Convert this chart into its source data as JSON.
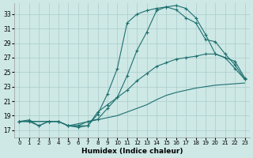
{
  "xlabel": "Humidex (Indice chaleur)",
  "xlim": [
    -0.5,
    23.5
  ],
  "ylim": [
    16.0,
    34.5
  ],
  "xticks": [
    0,
    1,
    2,
    3,
    4,
    5,
    6,
    7,
    8,
    9,
    10,
    11,
    12,
    13,
    14,
    15,
    16,
    17,
    18,
    19,
    20,
    21,
    22,
    23
  ],
  "yticks": [
    17,
    19,
    21,
    23,
    25,
    27,
    29,
    31,
    33
  ],
  "bg_color": "#cde8e5",
  "line_color": "#1e7070",
  "grid_color": "#aacccc",
  "lines": [
    {
      "x": [
        0,
        1,
        2,
        3,
        4,
        5,
        6,
        7,
        8,
        9,
        10,
        11,
        12,
        13,
        14,
        15,
        16,
        17,
        18,
        19,
        20,
        21,
        22,
        23
      ],
      "y": [
        18.2,
        18.4,
        17.6,
        18.2,
        18.2,
        17.6,
        17.6,
        18.2,
        18.5,
        20.0,
        21.5,
        24.5,
        28.0,
        30.5,
        33.5,
        34.0,
        34.2,
        33.8,
        32.5,
        30.2,
        27.5,
        27.0,
        25.5,
        24.0
      ],
      "has_markers": true
    },
    {
      "x": [
        0,
        1,
        2,
        3,
        4,
        5,
        6,
        7,
        8,
        9,
        10,
        11,
        12,
        13,
        14,
        15,
        16,
        17,
        18,
        19,
        20,
        21,
        22,
        23
      ],
      "y": [
        18.2,
        18.2,
        17.6,
        18.2,
        18.2,
        17.6,
        17.4,
        17.6,
        19.2,
        22.0,
        25.5,
        31.8,
        33.0,
        33.5,
        33.8,
        34.0,
        33.6,
        32.5,
        31.8,
        29.5,
        29.2,
        27.5,
        26.0,
        24.0
      ],
      "has_markers": true
    },
    {
      "x": [
        0,
        3,
        4,
        5,
        6,
        7,
        8,
        9,
        10,
        11,
        12,
        13,
        14,
        15,
        16,
        17,
        18,
        19,
        20,
        22,
        23
      ],
      "y": [
        18.2,
        18.2,
        18.2,
        17.6,
        17.6,
        17.6,
        19.5,
        20.5,
        21.5,
        22.5,
        23.8,
        24.8,
        25.8,
        26.3,
        26.8,
        27.0,
        27.2,
        27.5,
        27.5,
        26.5,
        24.2
      ],
      "has_markers": true
    },
    {
      "x": [
        0,
        3,
        4,
        5,
        10,
        11,
        12,
        13,
        14,
        15,
        16,
        17,
        18,
        19,
        20,
        21,
        22,
        23
      ],
      "y": [
        18.2,
        18.2,
        18.2,
        17.6,
        19.0,
        19.5,
        20.0,
        20.5,
        21.2,
        21.8,
        22.2,
        22.5,
        22.8,
        23.0,
        23.2,
        23.3,
        23.4,
        23.5
      ],
      "has_markers": false
    }
  ]
}
